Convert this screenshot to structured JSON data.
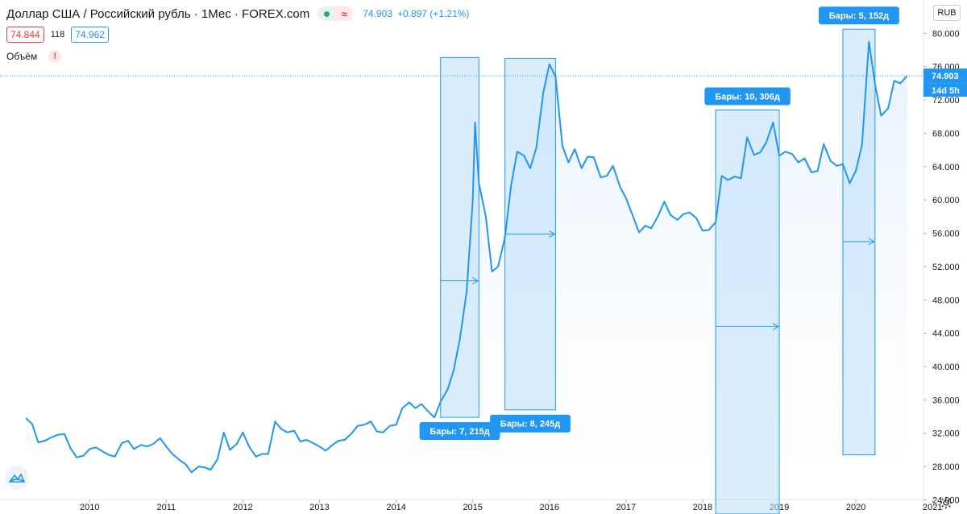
{
  "header": {
    "title": "Доллар США / Российский рубль · 1Мес · FOREX.com",
    "price": "74.903",
    "change": "+0.897 (+1.21%)",
    "bid": "74.844",
    "spread": "118",
    "ask": "74.962",
    "volume_label": "Объём",
    "warning_mark": "!",
    "currency": "RUB",
    "wave_symbol": "≈"
  },
  "colors": {
    "line": "#2196f3",
    "area_fill": "#e3f0fc",
    "range_fill": "#bbdefb",
    "label_bg": "#2196f3",
    "axis_text": "#131722",
    "grid": "#f0f3fa"
  },
  "chart_data": {
    "type": "area",
    "x_tick_labels": [
      "2010",
      "2011",
      "2012",
      "2013",
      "2014",
      "2015",
      "2016",
      "2017",
      "2018",
      "2019",
      "2020",
      "2021"
    ],
    "y_tick_labels": [
      "24.000",
      "28.000",
      "32.000",
      "36.000",
      "40.000",
      "44.000",
      "48.000",
      "52.000",
      "56.000",
      "60.000",
      "64.000",
      "68.000",
      "72.000",
      "76.000",
      "80.000"
    ],
    "ylim": [
      22.3,
      84.0
    ],
    "xlim": [
      2008.83,
      2021.45
    ],
    "last_price_label": "74.903",
    "countdown_label": "14d 5h",
    "series": [
      {
        "values": [
          [
            2009.17,
            33.8
          ],
          [
            2009.25,
            33.1
          ],
          [
            2009.33,
            30.9
          ],
          [
            2009.42,
            31.1
          ],
          [
            2009.5,
            31.5
          ],
          [
            2009.58,
            31.8
          ],
          [
            2009.67,
            31.9
          ],
          [
            2009.75,
            30.2
          ],
          [
            2009.83,
            29.1
          ],
          [
            2009.92,
            29.3
          ],
          [
            2010.0,
            30.1
          ],
          [
            2010.08,
            30.3
          ],
          [
            2010.17,
            29.8
          ],
          [
            2010.25,
            29.4
          ],
          [
            2010.33,
            29.2
          ],
          [
            2010.42,
            30.8
          ],
          [
            2010.5,
            31.1
          ],
          [
            2010.58,
            30.1
          ],
          [
            2010.67,
            30.6
          ],
          [
            2010.75,
            30.4
          ],
          [
            2010.83,
            30.7
          ],
          [
            2010.92,
            31.4
          ],
          [
            2011.0,
            30.4
          ],
          [
            2011.08,
            29.5
          ],
          [
            2011.17,
            28.8
          ],
          [
            2011.25,
            28.3
          ],
          [
            2011.33,
            27.3
          ],
          [
            2011.42,
            28.0
          ],
          [
            2011.5,
            27.9
          ],
          [
            2011.58,
            27.6
          ],
          [
            2011.67,
            28.9
          ],
          [
            2011.75,
            32.1
          ],
          [
            2011.83,
            30.0
          ],
          [
            2011.92,
            30.7
          ],
          [
            2012.0,
            32.1
          ],
          [
            2012.08,
            30.4
          ],
          [
            2012.17,
            29.2
          ],
          [
            2012.25,
            29.5
          ],
          [
            2012.33,
            29.5
          ],
          [
            2012.42,
            33.4
          ],
          [
            2012.5,
            32.5
          ],
          [
            2012.58,
            32.1
          ],
          [
            2012.67,
            32.3
          ],
          [
            2012.75,
            31.0
          ],
          [
            2012.83,
            31.2
          ],
          [
            2012.92,
            30.8
          ],
          [
            2013.0,
            30.4
          ],
          [
            2013.08,
            29.9
          ],
          [
            2013.17,
            30.6
          ],
          [
            2013.25,
            31.1
          ],
          [
            2013.33,
            31.2
          ],
          [
            2013.42,
            32.0
          ],
          [
            2013.5,
            32.9
          ],
          [
            2013.58,
            33.0
          ],
          [
            2013.67,
            33.4
          ],
          [
            2013.75,
            32.2
          ],
          [
            2013.83,
            32.1
          ],
          [
            2013.92,
            32.9
          ],
          [
            2014.0,
            33.0
          ],
          [
            2014.08,
            35.0
          ],
          [
            2014.17,
            35.7
          ],
          [
            2014.25,
            35.0
          ],
          [
            2014.33,
            35.5
          ],
          [
            2014.42,
            34.6
          ],
          [
            2014.5,
            33.9
          ],
          [
            2014.58,
            35.8
          ],
          [
            2014.67,
            37.2
          ],
          [
            2014.75,
            39.5
          ],
          [
            2014.83,
            43.2
          ],
          [
            2014.92,
            49.0
          ],
          [
            2015.0,
            60.0
          ],
          [
            2015.03,
            69.3
          ],
          [
            2015.08,
            62.0
          ],
          [
            2015.17,
            58.0
          ],
          [
            2015.25,
            51.4
          ],
          [
            2015.33,
            52.0
          ],
          [
            2015.42,
            55.5
          ],
          [
            2015.5,
            61.7
          ],
          [
            2015.58,
            65.8
          ],
          [
            2015.67,
            65.3
          ],
          [
            2015.75,
            63.8
          ],
          [
            2015.83,
            66.3
          ],
          [
            2015.92,
            72.9
          ],
          [
            2016.0,
            76.3
          ],
          [
            2016.08,
            74.8
          ],
          [
            2016.17,
            66.5
          ],
          [
            2016.25,
            64.5
          ],
          [
            2016.33,
            66.1
          ],
          [
            2016.42,
            63.8
          ],
          [
            2016.5,
            65.2
          ],
          [
            2016.58,
            65.1
          ],
          [
            2016.67,
            62.7
          ],
          [
            2016.75,
            62.9
          ],
          [
            2016.83,
            64.1
          ],
          [
            2016.92,
            61.6
          ],
          [
            2017.0,
            60.2
          ],
          [
            2017.08,
            58.3
          ],
          [
            2017.17,
            56.1
          ],
          [
            2017.25,
            56.9
          ],
          [
            2017.33,
            56.6
          ],
          [
            2017.42,
            58.1
          ],
          [
            2017.5,
            59.8
          ],
          [
            2017.58,
            58.2
          ],
          [
            2017.67,
            57.6
          ],
          [
            2017.75,
            58.3
          ],
          [
            2017.83,
            58.5
          ],
          [
            2017.92,
            57.8
          ],
          [
            2018.0,
            56.3
          ],
          [
            2018.08,
            56.4
          ],
          [
            2018.17,
            57.3
          ],
          [
            2018.25,
            62.9
          ],
          [
            2018.33,
            62.4
          ],
          [
            2018.42,
            62.8
          ],
          [
            2018.5,
            62.6
          ],
          [
            2018.58,
            67.5
          ],
          [
            2018.67,
            65.4
          ],
          [
            2018.75,
            65.7
          ],
          [
            2018.83,
            66.9
          ],
          [
            2018.92,
            69.3
          ],
          [
            2019.0,
            65.3
          ],
          [
            2019.08,
            65.8
          ],
          [
            2019.17,
            65.5
          ],
          [
            2019.25,
            64.5
          ],
          [
            2019.33,
            65.0
          ],
          [
            2019.42,
            63.3
          ],
          [
            2019.5,
            63.5
          ],
          [
            2019.58,
            66.7
          ],
          [
            2019.67,
            64.7
          ],
          [
            2019.75,
            64.1
          ],
          [
            2019.83,
            64.3
          ],
          [
            2019.92,
            62.0
          ],
          [
            2020.0,
            63.5
          ],
          [
            2020.08,
            66.6
          ],
          [
            2020.17,
            79.0
          ],
          [
            2020.25,
            73.9
          ],
          [
            2020.33,
            70.1
          ],
          [
            2020.42,
            71.0
          ],
          [
            2020.5,
            74.3
          ],
          [
            2020.58,
            74.0
          ],
          [
            2020.67,
            74.903
          ]
        ]
      }
    ],
    "annotations": [
      {
        "label": "Бары: 7, 215д",
        "x_start": 2014.58,
        "x_end": 2015.08,
        "y_low": 33.9,
        "y_high": 77.1,
        "arrow_price": 50.3
      },
      {
        "label": "Бары: 8, 245д",
        "x_start": 2015.42,
        "x_end": 2016.08,
        "y_low": 34.8,
        "y_high": 77.0,
        "arrow_price": 55.9
      },
      {
        "label": "Бары: 10, 306д",
        "x_start": 2018.17,
        "x_end": 2019.0,
        "y_low": 22.3,
        "y_high": 70.8,
        "arrow_price": 44.8
      },
      {
        "label": "Бары: 5, 152д",
        "x_start": 2019.83,
        "x_end": 2020.25,
        "y_low": 29.4,
        "y_high": 80.5,
        "arrow_price": 55.0
      }
    ]
  }
}
